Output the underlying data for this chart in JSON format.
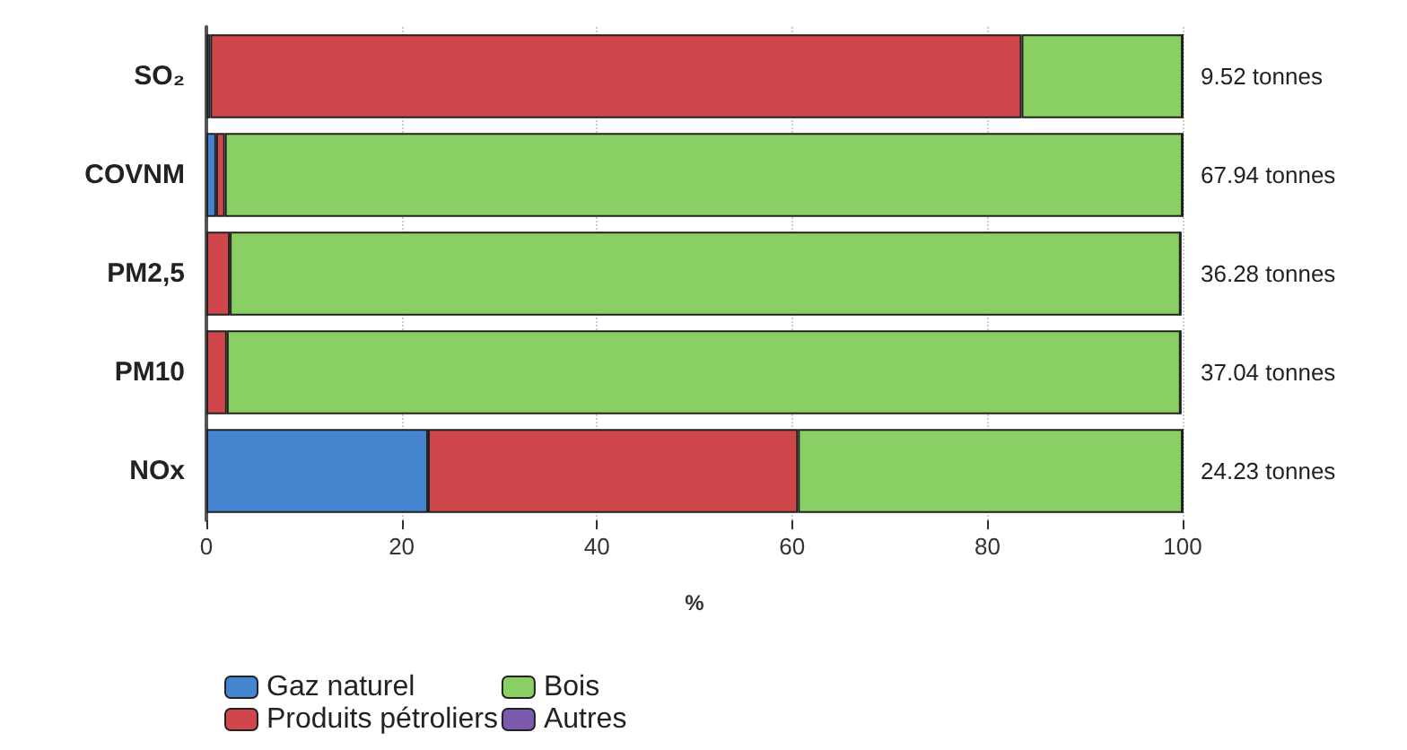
{
  "chart_data": {
    "type": "bar",
    "orientation": "horizontal",
    "stacked": true,
    "xlabel": "%",
    "categories": [
      "SO₂",
      "COVNM",
      "PM2,5",
      "PM10",
      "NOx"
    ],
    "series": [
      {
        "name": "Gaz naturel",
        "color": "#4585d0",
        "values": [
          0.4,
          1.0,
          null,
          null,
          22.7
        ]
      },
      {
        "name": "Produits pétroliers",
        "color": "#d0474b",
        "values": [
          83.1,
          0.9,
          2.4,
          2.1,
          37.9
        ]
      },
      {
        "name": "Bois",
        "color": "#8acf63",
        "values": [
          16.5,
          98.1,
          97.4,
          97.7,
          39.4
        ]
      },
      {
        "name": "Autres",
        "color": "#7b59ad",
        "values": [
          0,
          0,
          0,
          0,
          0
        ]
      }
    ],
    "annotations": [
      "9.52 tonnes",
      "67.94 tonnes",
      "36.28 tonnes",
      "37.04 tonnes",
      "24.23 tonnes"
    ],
    "xlim": [
      0,
      100
    ],
    "xticks": [
      0,
      20,
      40,
      60,
      80,
      100
    ],
    "grid": "x",
    "legend": "bottom"
  }
}
